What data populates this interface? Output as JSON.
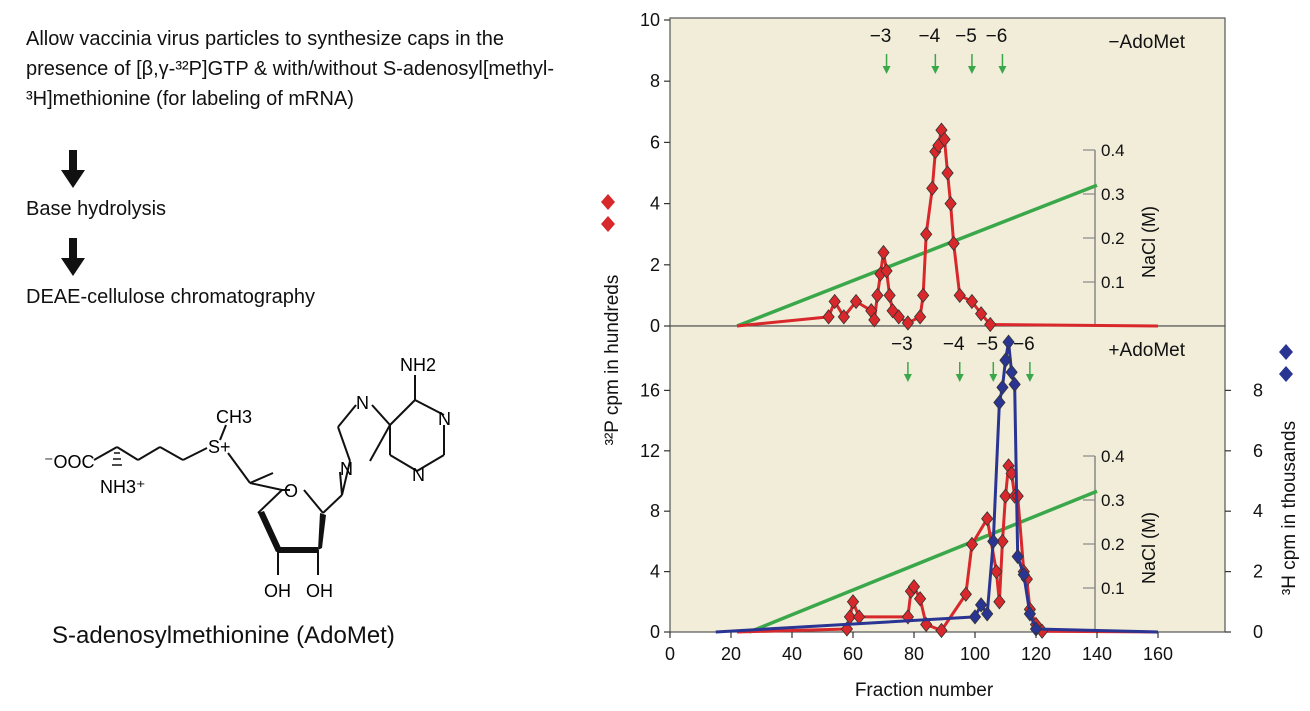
{
  "protocol": {
    "step1": "Allow vaccinia virus particles to synthesize caps in the presence of [β,γ-³²P]GTP & with/without S-adenosyl[methyl-³H]methionine (for labeling of mRNA)",
    "step2": "Base hydrolysis",
    "step3": "DEAE-cellulose chromatography"
  },
  "molecule": {
    "caption": "S-adenosylmethionine (AdoMet)",
    "atoms": {
      "nh2": "NH2",
      "ch3": "CH3",
      "s_plus": "S+",
      "coo": "⁻OOC",
      "nh3": "NH3⁺",
      "o_ring": "O",
      "n7": "N",
      "n9": "N",
      "n1": "N",
      "n3": "N",
      "oh2": "OH",
      "oh3": "OH"
    }
  },
  "colors": {
    "plot_bg": "#f1edd9",
    "p32_series": "#d8282b",
    "h3_series": "#2a3593",
    "nacl_line": "#3aa84a",
    "charge_arrow": "#3aa84a"
  },
  "chart_data": [
    {
      "type": "line",
      "panel": "top",
      "label": "−AdoMet",
      "ylabel_left": "³²P cpm in hundreds",
      "ylim": [
        0,
        10
      ],
      "yticks": [
        "0",
        "2",
        "4",
        "6",
        "8",
        "10"
      ],
      "xlim": [
        0,
        160
      ],
      "charge_markers": [
        {
          "label": "−3",
          "x": 71
        },
        {
          "label": "−4",
          "x": 87
        },
        {
          "label": "−5",
          "x": 99
        },
        {
          "label": "−6",
          "x": 109
        }
      ],
      "nacl_axis": {
        "label": "NaCl (M)",
        "ticks": [
          "0.1",
          "0.2",
          "0.3",
          "0.4"
        ]
      },
      "nacl_gradient": {
        "x": [
          22,
          140
        ],
        "M": [
          0.0,
          0.32
        ]
      },
      "series": [
        {
          "name": "³²P",
          "x": [
            52,
            54,
            57,
            61,
            66,
            67,
            68,
            69,
            70,
            71,
            72,
            73,
            75,
            78,
            82,
            83,
            84,
            86,
            87,
            88,
            89,
            90,
            91,
            92,
            93,
            95,
            99,
            102,
            105
          ],
          "values": [
            0.3,
            0.8,
            0.3,
            0.8,
            0.5,
            0.2,
            1.0,
            1.7,
            2.4,
            1.8,
            1.0,
            0.5,
            0.3,
            0.1,
            0.3,
            1.0,
            3.0,
            4.5,
            5.7,
            5.9,
            6.4,
            6.1,
            5.0,
            4.0,
            2.7,
            1.0,
            0.8,
            0.4,
            0.05
          ]
        }
      ]
    },
    {
      "type": "line",
      "panel": "bottom",
      "label": "+AdoMet",
      "ylabel_left": "³²P cpm in hundreds",
      "ylabel_right": "³H cpm in thousands",
      "ylim": [
        0,
        20
      ],
      "yticks": [
        "0",
        "4",
        "8",
        "12",
        "16"
      ],
      "ylim_right": [
        0,
        10
      ],
      "yticks_right": [
        "0",
        "2",
        "4",
        "6",
        "8"
      ],
      "xlim": [
        0,
        160
      ],
      "xlabel": "Fraction number",
      "xticks": [
        "0",
        "20",
        "40",
        "60",
        "80",
        "100",
        "120",
        "140",
        "160"
      ],
      "charge_markers": [
        {
          "label": "−3",
          "x": 78
        },
        {
          "label": "−4",
          "x": 95
        },
        {
          "label": "−5",
          "x": 106
        },
        {
          "label": "−6",
          "x": 118
        }
      ],
      "nacl_axis": {
        "label": "NaCl (M)",
        "ticks": [
          "0.1",
          "0.2",
          "0.3",
          "0.4"
        ]
      },
      "nacl_gradient": {
        "x": [
          26,
          140
        ],
        "M": [
          0.0,
          0.32
        ]
      },
      "series": [
        {
          "name": "³²P",
          "x": [
            58,
            59,
            60,
            62,
            78,
            79,
            80,
            82,
            84,
            89,
            97,
            99,
            104,
            107,
            108,
            109,
            110,
            111,
            112,
            113,
            114,
            116,
            117,
            118,
            120,
            122
          ],
          "values": [
            0.2,
            1.0,
            2.0,
            1.0,
            1.0,
            2.7,
            3.0,
            2.2,
            0.5,
            0.1,
            2.5,
            5.8,
            7.5,
            4.0,
            2.0,
            6.0,
            9.0,
            11.0,
            10.5,
            9.0,
            9.0,
            4.0,
            3.5,
            1.5,
            0.5,
            0.05
          ]
        },
        {
          "name": "³H",
          "axis": "right",
          "x": [
            100,
            102,
            104,
            106,
            108,
            109,
            110,
            111,
            112,
            113,
            114,
            116,
            118,
            120
          ],
          "values": [
            0.5,
            0.9,
            0.6,
            3.0,
            7.6,
            8.1,
            9.0,
            9.6,
            8.6,
            8.2,
            2.5,
            1.9,
            0.6,
            0.1
          ]
        }
      ]
    }
  ]
}
